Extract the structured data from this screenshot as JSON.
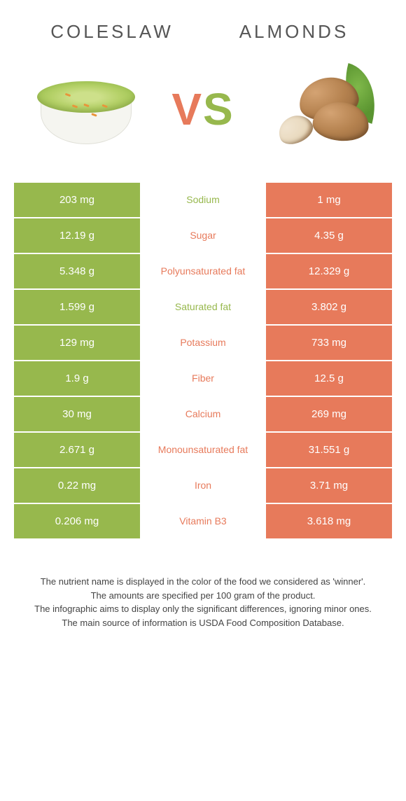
{
  "food_left": {
    "name": "COLESLAW",
    "color": "#97b84d"
  },
  "food_right": {
    "name": "ALMONDS",
    "color": "#e77a5b"
  },
  "vs_text": "VS",
  "rows": [
    {
      "left": "203 mg",
      "label": "Sodium",
      "right": "1 mg",
      "winner": "left"
    },
    {
      "left": "12.19 g",
      "label": "Sugar",
      "right": "4.35 g",
      "winner": "right"
    },
    {
      "left": "5.348 g",
      "label": "Polyunsaturated fat",
      "right": "12.329 g",
      "winner": "right"
    },
    {
      "left": "1.599 g",
      "label": "Saturated fat",
      "right": "3.802 g",
      "winner": "left"
    },
    {
      "left": "129 mg",
      "label": "Potassium",
      "right": "733 mg",
      "winner": "right"
    },
    {
      "left": "1.9 g",
      "label": "Fiber",
      "right": "12.5 g",
      "winner": "right"
    },
    {
      "left": "30 mg",
      "label": "Calcium",
      "right": "269 mg",
      "winner": "right"
    },
    {
      "left": "2.671 g",
      "label": "Monounsaturated fat",
      "right": "31.551 g",
      "winner": "right"
    },
    {
      "left": "0.22 mg",
      "label": "Iron",
      "right": "3.71 mg",
      "winner": "right"
    },
    {
      "left": "0.206 mg",
      "label": "Vitamin B3",
      "right": "3.618 mg",
      "winner": "right"
    }
  ],
  "footer_lines": [
    "The nutrient name is displayed in the color of the food we considered as 'winner'.",
    "The amounts are specified per 100 gram of the product.",
    "The infographic aims to display only the significant differences, ignoring minor ones.",
    "The main source of information is USDA Food Composition Database."
  ],
  "style": {
    "left_color": "#97b84d",
    "right_color": "#e77a5b",
    "background": "#ffffff",
    "title_fontsize": 26,
    "title_letterspacing": 4,
    "vs_fontsize": 64,
    "cell_fontsize": 15,
    "label_fontsize": 14,
    "footer_fontsize": 13,
    "row_padding_v": 16
  }
}
